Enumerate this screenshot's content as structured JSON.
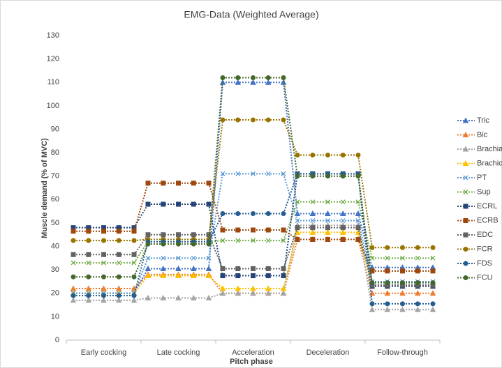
{
  "chart_data": {
    "type": "line",
    "title": "EMG-Data (Weighted Average)",
    "x_label": "Pitch phase",
    "y_label": "Muscle demand (% of MVC)",
    "categories": [
      "Early cocking",
      "Late cocking",
      "Acceleration",
      "Deceleration",
      "Follow-through"
    ],
    "ylim": [
      0,
      130
    ],
    "yticks": [
      0,
      10,
      20,
      30,
      40,
      50,
      60,
      70,
      80,
      90,
      100,
      110,
      120,
      130
    ],
    "grid": false,
    "legend": "right",
    "series": [
      {
        "name": "Tric",
        "color": "#4472c4",
        "marker": "triangle",
        "values": [
          20,
          30.5,
          110,
          54,
          31
        ]
      },
      {
        "name": "Bic",
        "color": "#ed7d31",
        "marker": "triangle",
        "values": [
          22,
          28,
          20,
          43,
          20
        ]
      },
      {
        "name": "Brachia",
        "color": "#a5a5a5",
        "marker": "triangle",
        "values": [
          17,
          18,
          20,
          49,
          13
        ]
      },
      {
        "name": "Brachio",
        "color": "#ffc000",
        "marker": "triangle",
        "values": [
          20,
          27.5,
          22,
          46,
          23
        ]
      },
      {
        "name": "PT",
        "color": "#5b9bd5",
        "marker": "x",
        "values": [
          20,
          35,
          71,
          51,
          25
        ]
      },
      {
        "name": "Sup",
        "color": "#70ad47",
        "marker": "x",
        "values": [
          33,
          42,
          42.5,
          59,
          35
        ]
      },
      {
        "name": "ECRL",
        "color": "#264478",
        "marker": "square",
        "values": [
          48,
          58,
          27.5,
          71,
          23
        ]
      },
      {
        "name": "ECRB",
        "color": "#9e480e",
        "marker": "square",
        "values": [
          46.5,
          67,
          47,
          43,
          29.5
        ]
      },
      {
        "name": "EDC",
        "color": "#636363",
        "marker": "square",
        "values": [
          36.5,
          45,
          30.5,
          48,
          23.5
        ]
      },
      {
        "name": "FCR",
        "color": "#997300",
        "marker": "circle",
        "values": [
          42.5,
          43,
          94,
          79,
          39.5
        ]
      },
      {
        "name": "FDS",
        "color": "#255e91",
        "marker": "circle",
        "values": [
          19,
          42,
          54,
          71,
          15.5
        ]
      },
      {
        "name": "FCU",
        "color": "#43682b",
        "marker": "circle",
        "values": [
          27,
          41,
          112,
          70,
          24.5
        ]
      }
    ]
  }
}
